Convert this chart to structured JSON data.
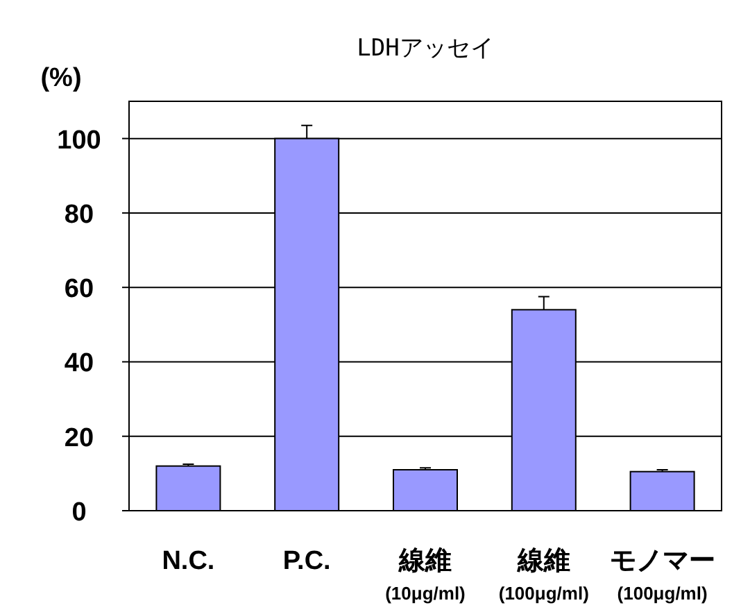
{
  "chart_data": {
    "type": "bar",
    "title": "LDHアッセイ",
    "ylabel": "(%)",
    "categories": [
      "N.C.",
      "P.C.",
      "線維\n(10μg/ml)",
      "線維\n(100μg/ml)",
      "モノマー\n(100μg/ml)"
    ],
    "values": [
      12,
      100,
      11,
      54,
      10.5
    ],
    "errors": [
      [
        12,
        12.5
      ],
      [
        100,
        103.5
      ],
      [
        11,
        11.5
      ],
      [
        54,
        57.5
      ],
      [
        10.5,
        11
      ]
    ],
    "color": "#9999ff",
    "ylim": [
      0,
      110
    ],
    "yticks": [
      0,
      20,
      40,
      60,
      80,
      100
    ],
    "grid": "y"
  }
}
